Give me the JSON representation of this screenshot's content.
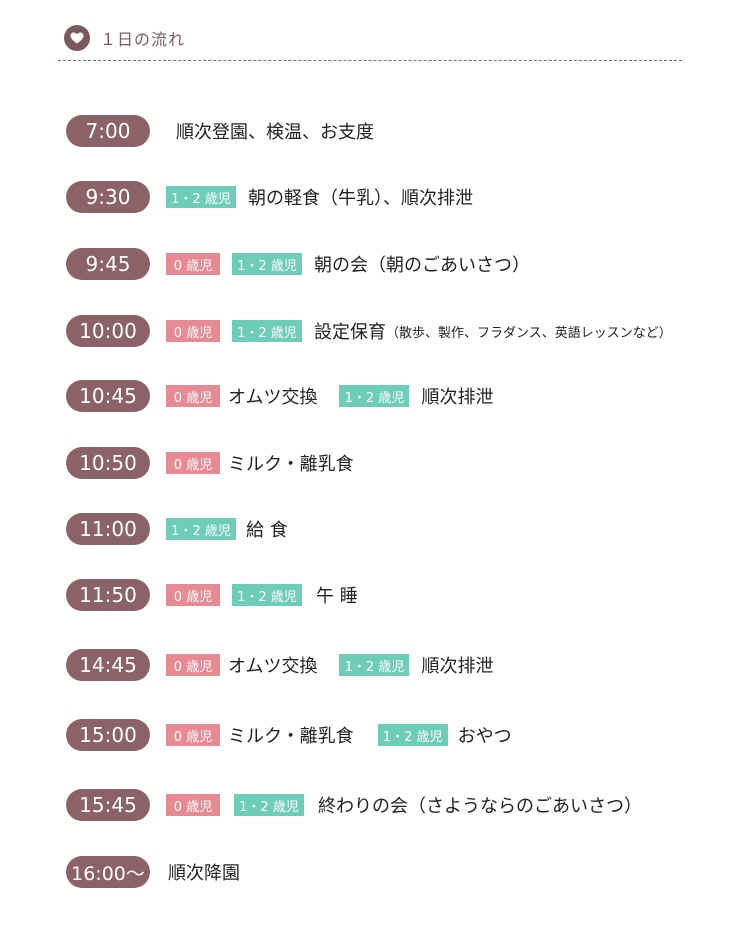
{
  "header": {
    "title": "１日の流れ",
    "accent": "#7a5a60"
  },
  "colors": {
    "time_pill": "#8a6268",
    "tag_infant": "#e88a94",
    "tag_toddler": "#6ecdb8"
  },
  "tags": {
    "infant": "0 歳児",
    "toddler": "1・2 歳児"
  },
  "schedule": [
    {
      "time": "7:00",
      "text": "順次登園、検温、お支度"
    },
    {
      "time": "9:30",
      "text": "朝の軽食（牛乳）、順次排泄"
    },
    {
      "time": "9:45",
      "text": "朝の会（朝のごあいさつ）"
    },
    {
      "time": "10:00",
      "text": "設定保育",
      "note": "（散歩、製作、フラダンス、英語レッスンなど）"
    },
    {
      "time": "10:45",
      "text": "オムツ交換",
      "text2": "順次排泄"
    },
    {
      "time": "10:50",
      "text": "ミルク・離乳食"
    },
    {
      "time": "11:00",
      "text": "給 食"
    },
    {
      "time": "11:50",
      "text": "午 睡"
    },
    {
      "time": "14:45",
      "text": "オムツ交換",
      "text2": "順次排泄"
    },
    {
      "time": "15:00",
      "text": "ミルク・離乳食",
      "text2": "おやつ"
    },
    {
      "time": "15:45",
      "text": "終わりの会（さようならのごあいさつ）"
    },
    {
      "time": "16:00〜",
      "text": "順次降園"
    }
  ]
}
